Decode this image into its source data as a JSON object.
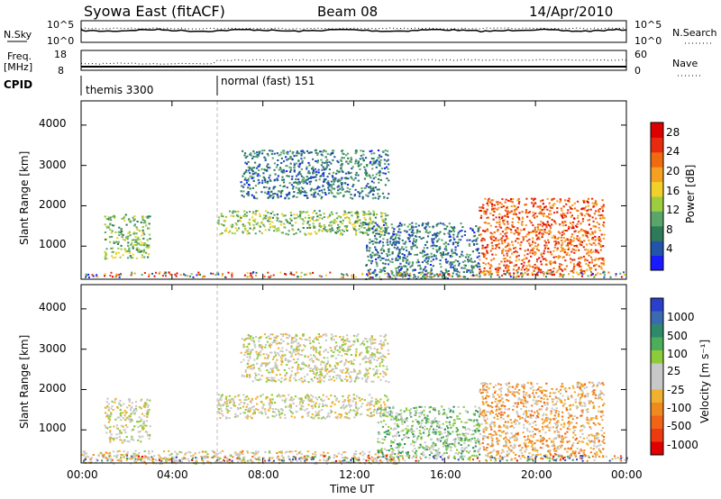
{
  "header": {
    "title": "Syowa East (fitACF)",
    "beam": "Beam 08",
    "date": "14/Apr/2010"
  },
  "noise_panel": {
    "left_label": "N.Sky",
    "right_label": "N.Search",
    "left_ticks": [
      "10^5",
      "10^0"
    ],
    "right_ticks": [
      "10^5",
      "10^0"
    ]
  },
  "freq_panel": {
    "left_label_1": "Freq.",
    "left_label_2": "[MHz]",
    "right_label": "Nave",
    "left_ticks": [
      "18",
      "8"
    ],
    "right_ticks": [
      "60",
      "0"
    ]
  },
  "cpid": {
    "label": "CPID",
    "modes": [
      {
        "name": "themis 3300",
        "start_hour": 0
      },
      {
        "name": "normal (fast) 151",
        "start_hour": 6
      }
    ]
  },
  "x_axis": {
    "label": "Time UT",
    "ticks": [
      "00:00",
      "04:00",
      "08:00",
      "12:00",
      "16:00",
      "20:00",
      "00:00"
    ]
  },
  "power_panel": {
    "ylabel": "Slant Range [km]",
    "yticks": [
      "1000",
      "2000",
      "3000",
      "4000"
    ],
    "colorbar_label": "Power [dB]",
    "colorbar_ticks": [
      "4",
      "8",
      "12",
      "16",
      "20",
      "24",
      "28"
    ],
    "colors": [
      "#1a1aff",
      "#2255aa",
      "#2e7b5a",
      "#5aa66a",
      "#9ccc40",
      "#f2d02a",
      "#f5a020",
      "#f06a10",
      "#e82b10",
      "#dd0000"
    ]
  },
  "velocity_panel": {
    "ylabel": "Slant Range [km]",
    "yticks": [
      "1000",
      "2000",
      "3000",
      "4000"
    ],
    "colorbar_label": "Velocity [m s⁻¹]",
    "colorbar_ticks": [
      "1000",
      "500",
      "100",
      "25",
      "-25",
      "-100",
      "-500",
      "-1000"
    ],
    "colors": [
      "#2a3fcc",
      "#3a6ab0",
      "#2e8a6a",
      "#4cae5a",
      "#8ccc3a",
      "#c8c8c8",
      "#c8c8c8",
      "#f0b030",
      "#f08a20",
      "#f06418",
      "#ee3a10",
      "#e00000"
    ]
  },
  "chart_data": [
    {
      "type": "heatmap",
      "title": "Power",
      "xlabel": "Time UT",
      "ylabel": "Slant Range [km]",
      "xlim": [
        0,
        24
      ],
      "ylim": [
        180,
        4600
      ],
      "zlabel": "Power [dB]",
      "zlim": [
        0,
        30
      ],
      "patches": [
        {
          "t": [
            1.0,
            3.0
          ],
          "r": [
            700,
            1800
          ],
          "value": 12
        },
        {
          "t": [
            6.0,
            13.5
          ],
          "r": [
            1300,
            1900
          ],
          "value": 12
        },
        {
          "t": [
            7.0,
            13.5
          ],
          "r": [
            2200,
            3400
          ],
          "value": 6
        },
        {
          "t": [
            12.5,
            17.5
          ],
          "r": [
            200,
            1600
          ],
          "value": 6
        },
        {
          "t": [
            17.5,
            23.0
          ],
          "r": [
            300,
            2200
          ],
          "value": 24
        }
      ]
    },
    {
      "type": "heatmap",
      "title": "Velocity",
      "xlabel": "Time UT",
      "ylabel": "Slant Range [km]",
      "xlim": [
        0,
        24
      ],
      "ylim": [
        180,
        4600
      ],
      "zlabel": "Velocity [m s⁻¹]",
      "zlim": [
        -1000,
        1000
      ],
      "patches": [
        {
          "t": [
            1.0,
            3.0
          ],
          "r": [
            700,
            1800
          ],
          "value": 0
        },
        {
          "t": [
            6.0,
            13.5
          ],
          "r": [
            1300,
            1900
          ],
          "value": 0
        },
        {
          "t": [
            7.0,
            13.5
          ],
          "r": [
            2200,
            3400
          ],
          "value": 0
        },
        {
          "t": [
            0.0,
            14.0
          ],
          "r": [
            180,
            500
          ],
          "value": -100
        },
        {
          "t": [
            13.0,
            17.5
          ],
          "r": [
            300,
            1600
          ],
          "value": 300
        },
        {
          "t": [
            17.5,
            23.0
          ],
          "r": [
            300,
            2200
          ],
          "value": -300
        }
      ]
    }
  ]
}
